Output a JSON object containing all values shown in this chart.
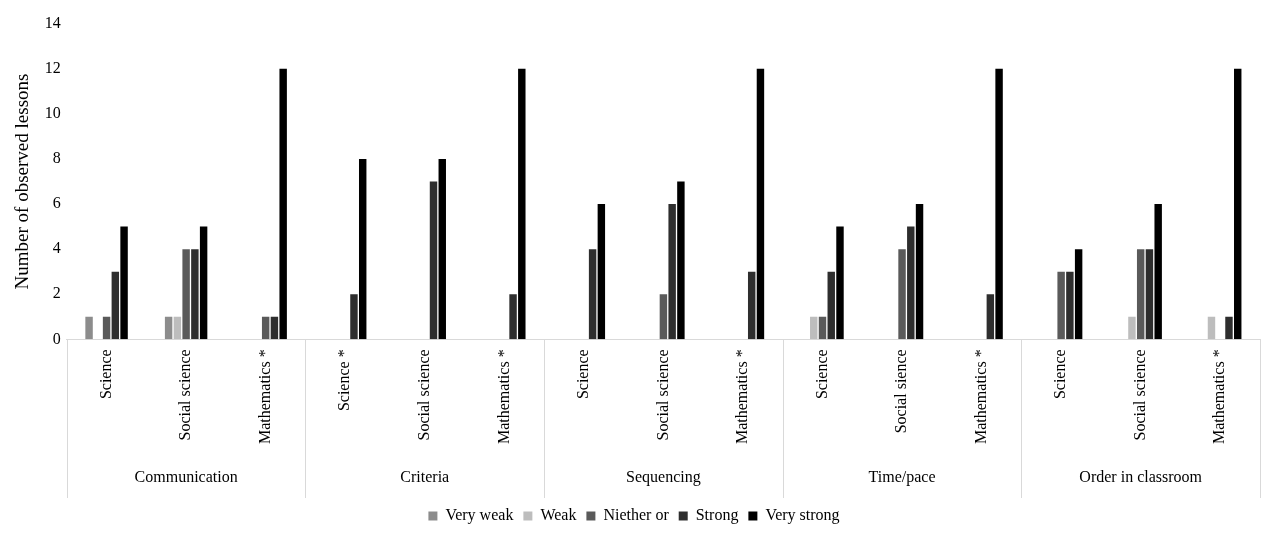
{
  "chart_data": {
    "type": "bar",
    "ylabel": "Number of observed lessons",
    "categories": [
      "Science",
      "Social science",
      "Mathematics *",
      "Science *",
      "Social science",
      "Mathematics *",
      "Science",
      "Social science",
      "Mathematics *",
      "Science",
      "Social sience",
      "Mathematics *",
      "Science",
      "Social science",
      "Mathematics *"
    ],
    "annotations": [
      "Communication",
      "Criteria",
      "Sequencing",
      "Time/pace",
      "Order in classroom"
    ],
    "series": [
      {
        "name": "Very weak",
        "color": "#8c8c8c",
        "values": [
          1,
          1,
          0,
          0,
          0,
          0,
          0,
          0,
          0,
          0,
          0,
          0,
          0,
          0,
          0
        ]
      },
      {
        "name": "Weak",
        "color": "#bdbdbd",
        "values": [
          0,
          1,
          0,
          0,
          0,
          0,
          0,
          0,
          0,
          1,
          0,
          0,
          0,
          1,
          1
        ]
      },
      {
        "name": "Niether or",
        "color": "#5a5a5a",
        "values": [
          1,
          4,
          1,
          0,
          0,
          0,
          0,
          2,
          0,
          1,
          4,
          0,
          3,
          4,
          0
        ]
      },
      {
        "name": "Strong",
        "color": "#2e2e2e",
        "values": [
          3,
          4,
          1,
          2,
          7,
          2,
          4,
          6,
          3,
          3,
          5,
          2,
          3,
          4,
          1
        ]
      },
      {
        "name": "Very strong",
        "color": "#000000",
        "values": [
          5,
          5,
          12,
          8,
          8,
          12,
          6,
          7,
          12,
          5,
          6,
          12,
          4,
          6,
          12
        ]
      }
    ],
    "ylim": [
      0,
      14
    ],
    "yticks": [
      0,
      2,
      4,
      6,
      8,
      10,
      12,
      14
    ],
    "grid": false,
    "legend": "bottom"
  }
}
